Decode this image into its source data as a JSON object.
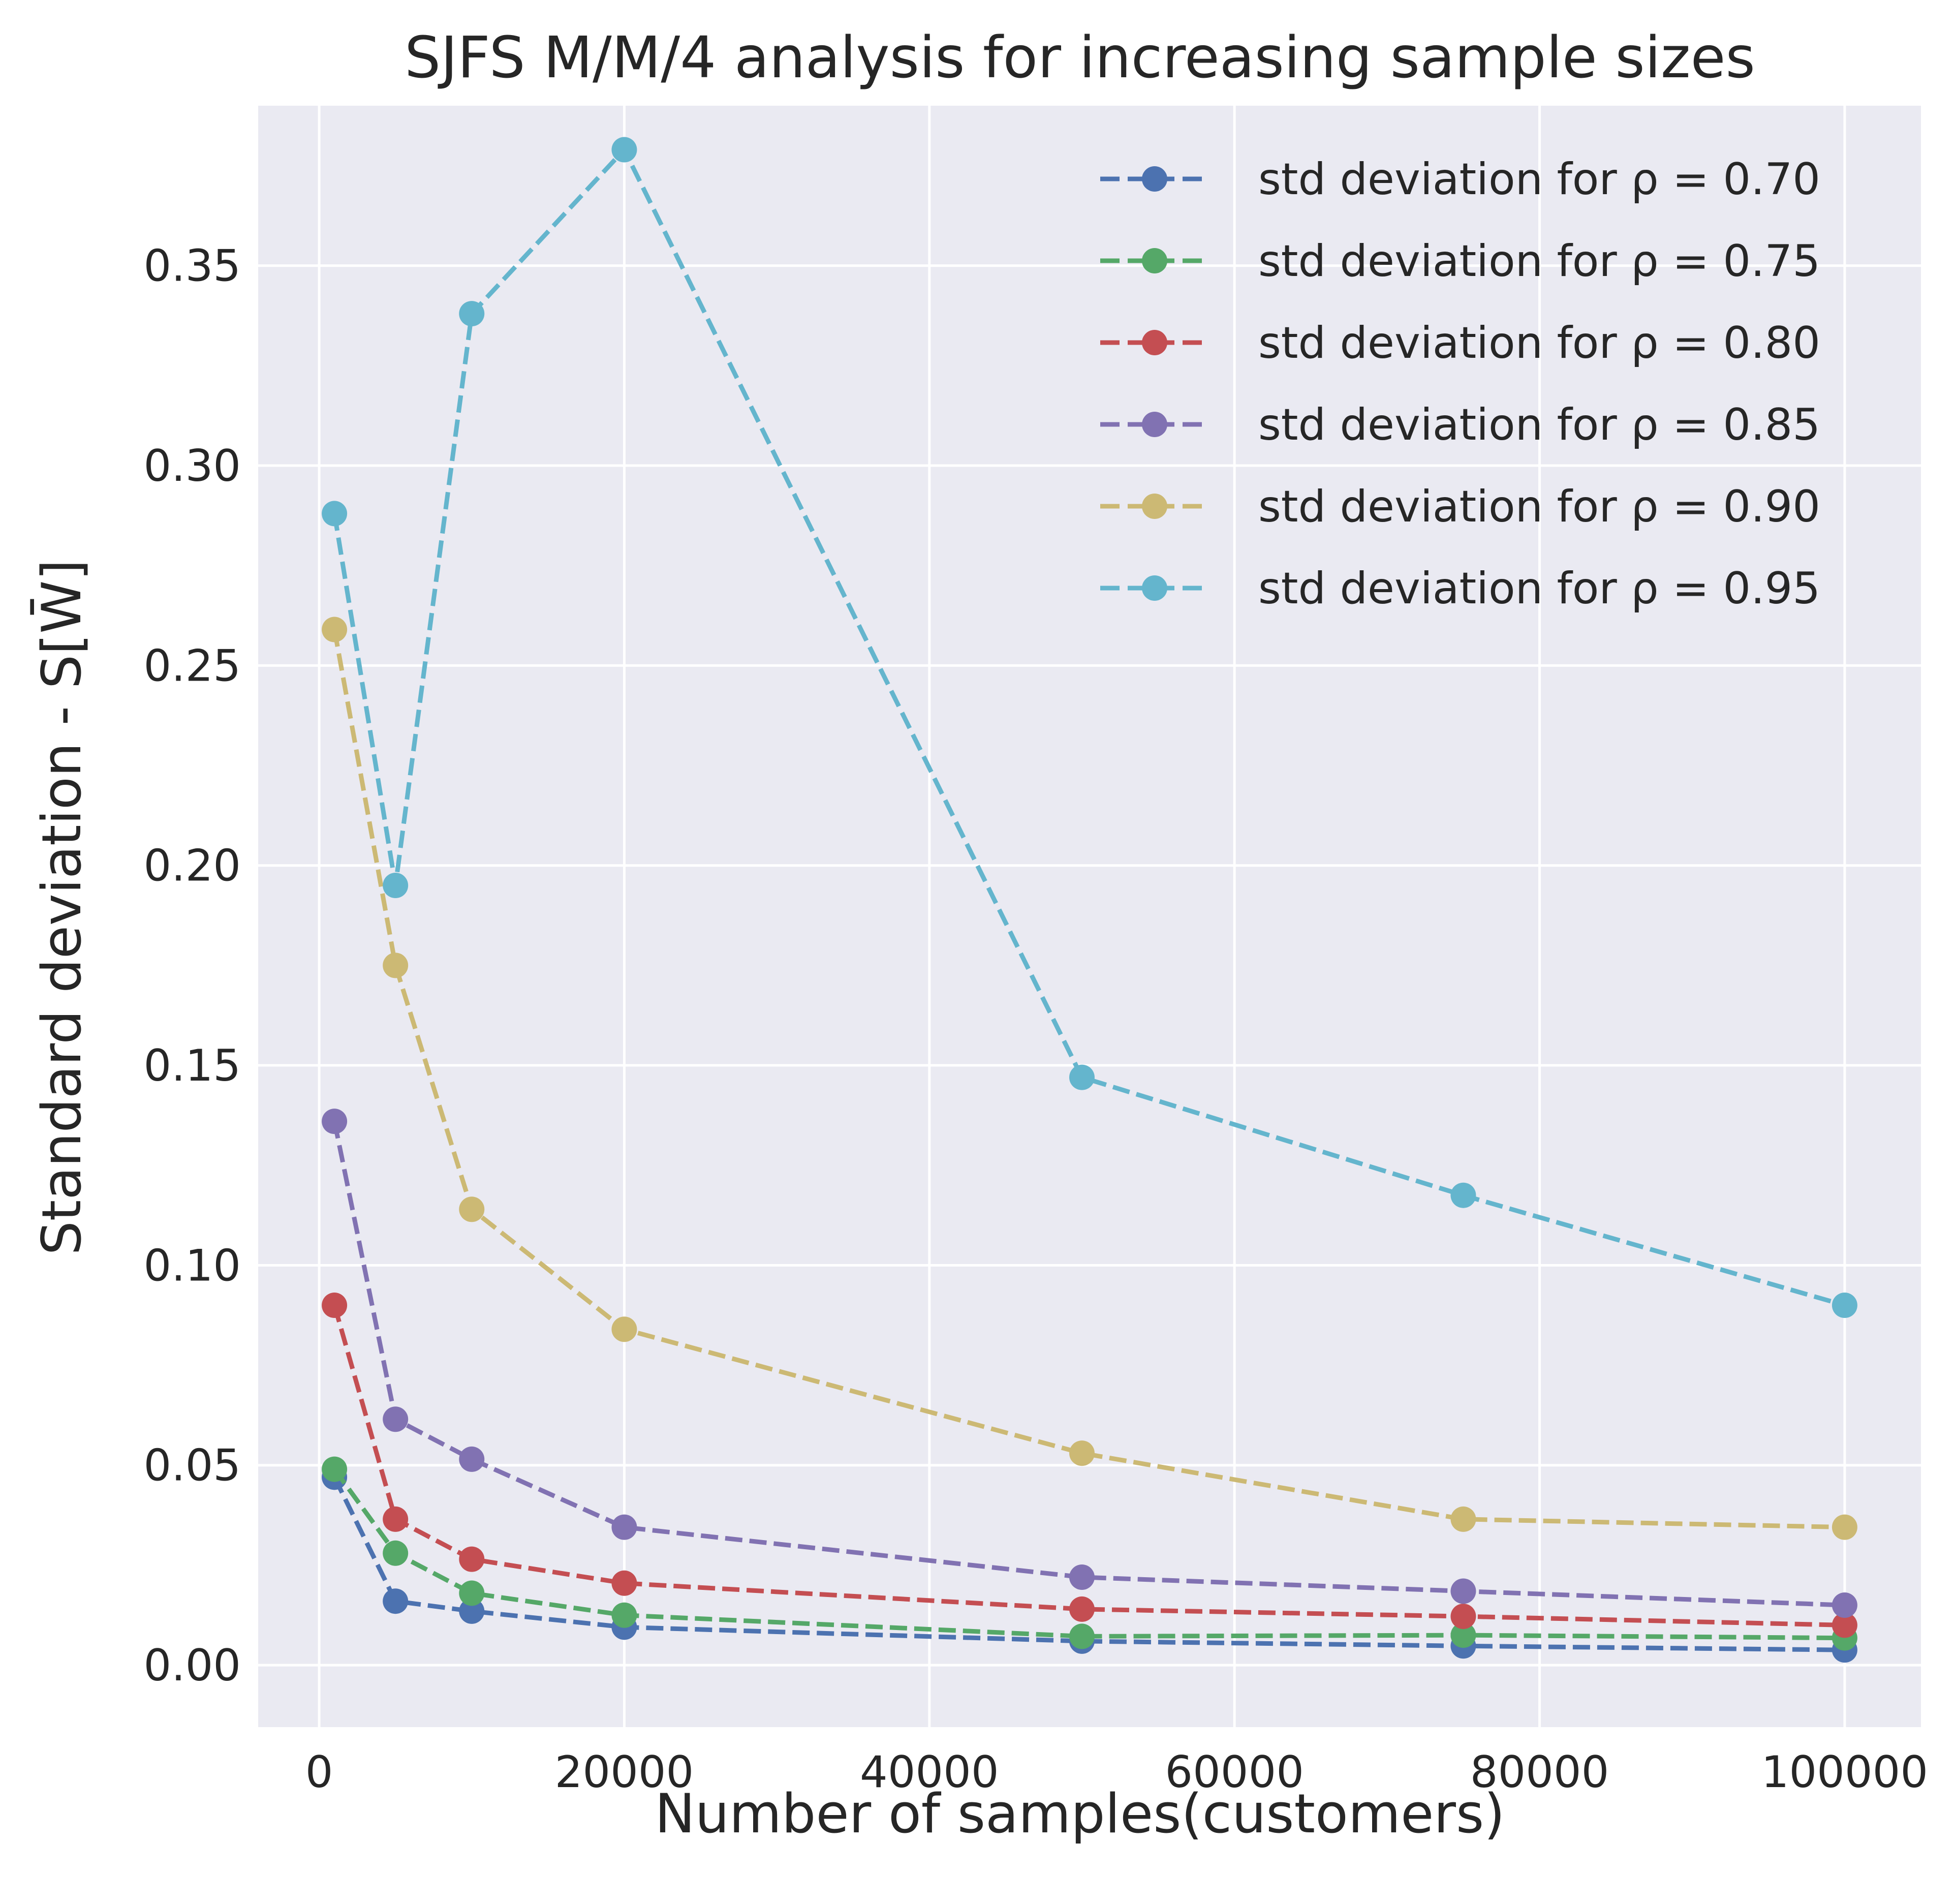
{
  "chart_data": {
    "type": "line",
    "title": "SJFS M/M/4 analysis for increasing sample sizes",
    "xlabel": "Number of samples(customers)",
    "ylabel": "Standard deviation - S[W̄]",
    "xlim": [
      -4000,
      105000
    ],
    "ylim": [
      -0.0155,
      0.39
    ],
    "xticks": [
      0,
      20000,
      40000,
      60000,
      80000,
      100000
    ],
    "xtick_labels": [
      "0",
      "20000",
      "40000",
      "60000",
      "80000",
      "100000"
    ],
    "yticks": [
      0.0,
      0.05,
      0.1,
      0.15,
      0.2,
      0.25,
      0.3,
      0.35
    ],
    "ytick_labels": [
      "0.00",
      "0.05",
      "0.10",
      "0.15",
      "0.20",
      "0.25",
      "0.30",
      "0.35"
    ],
    "grid": true,
    "legend_position": "top-right",
    "line_style": "dashed",
    "marker": "circle",
    "background_color": "#eaeaf2",
    "grid_color": "#ffffff",
    "x": [
      1000,
      5000,
      10000,
      20000,
      50000,
      75000,
      100000
    ],
    "series": [
      {
        "name": "std deviation for ρ = 0.70",
        "color": "#4c72b0",
        "values": [
          0.047,
          0.016,
          0.0135,
          0.0095,
          0.006,
          0.0048,
          0.0038
        ]
      },
      {
        "name": "std deviation for ρ = 0.75",
        "color": "#55a868",
        "values": [
          0.049,
          0.028,
          0.018,
          0.0125,
          0.0072,
          0.0075,
          0.0068
        ]
      },
      {
        "name": "std deviation for ρ = 0.80",
        "color": "#c44e52",
        "values": [
          0.09,
          0.0365,
          0.0265,
          0.0205,
          0.014,
          0.0122,
          0.01
        ]
      },
      {
        "name": "std deviation for ρ = 0.85",
        "color": "#8172b2",
        "values": [
          0.136,
          0.0615,
          0.0515,
          0.0345,
          0.022,
          0.0185,
          0.015
        ]
      },
      {
        "name": "std deviation for ρ = 0.90",
        "color": "#ccb974",
        "values": [
          0.259,
          0.175,
          0.114,
          0.084,
          0.053,
          0.0365,
          0.0345
        ]
      },
      {
        "name": "std deviation for ρ = 0.95",
        "color": "#64b5cd",
        "values": [
          0.288,
          0.195,
          0.338,
          0.379,
          0.147,
          0.1175,
          0.09
        ]
      }
    ]
  }
}
